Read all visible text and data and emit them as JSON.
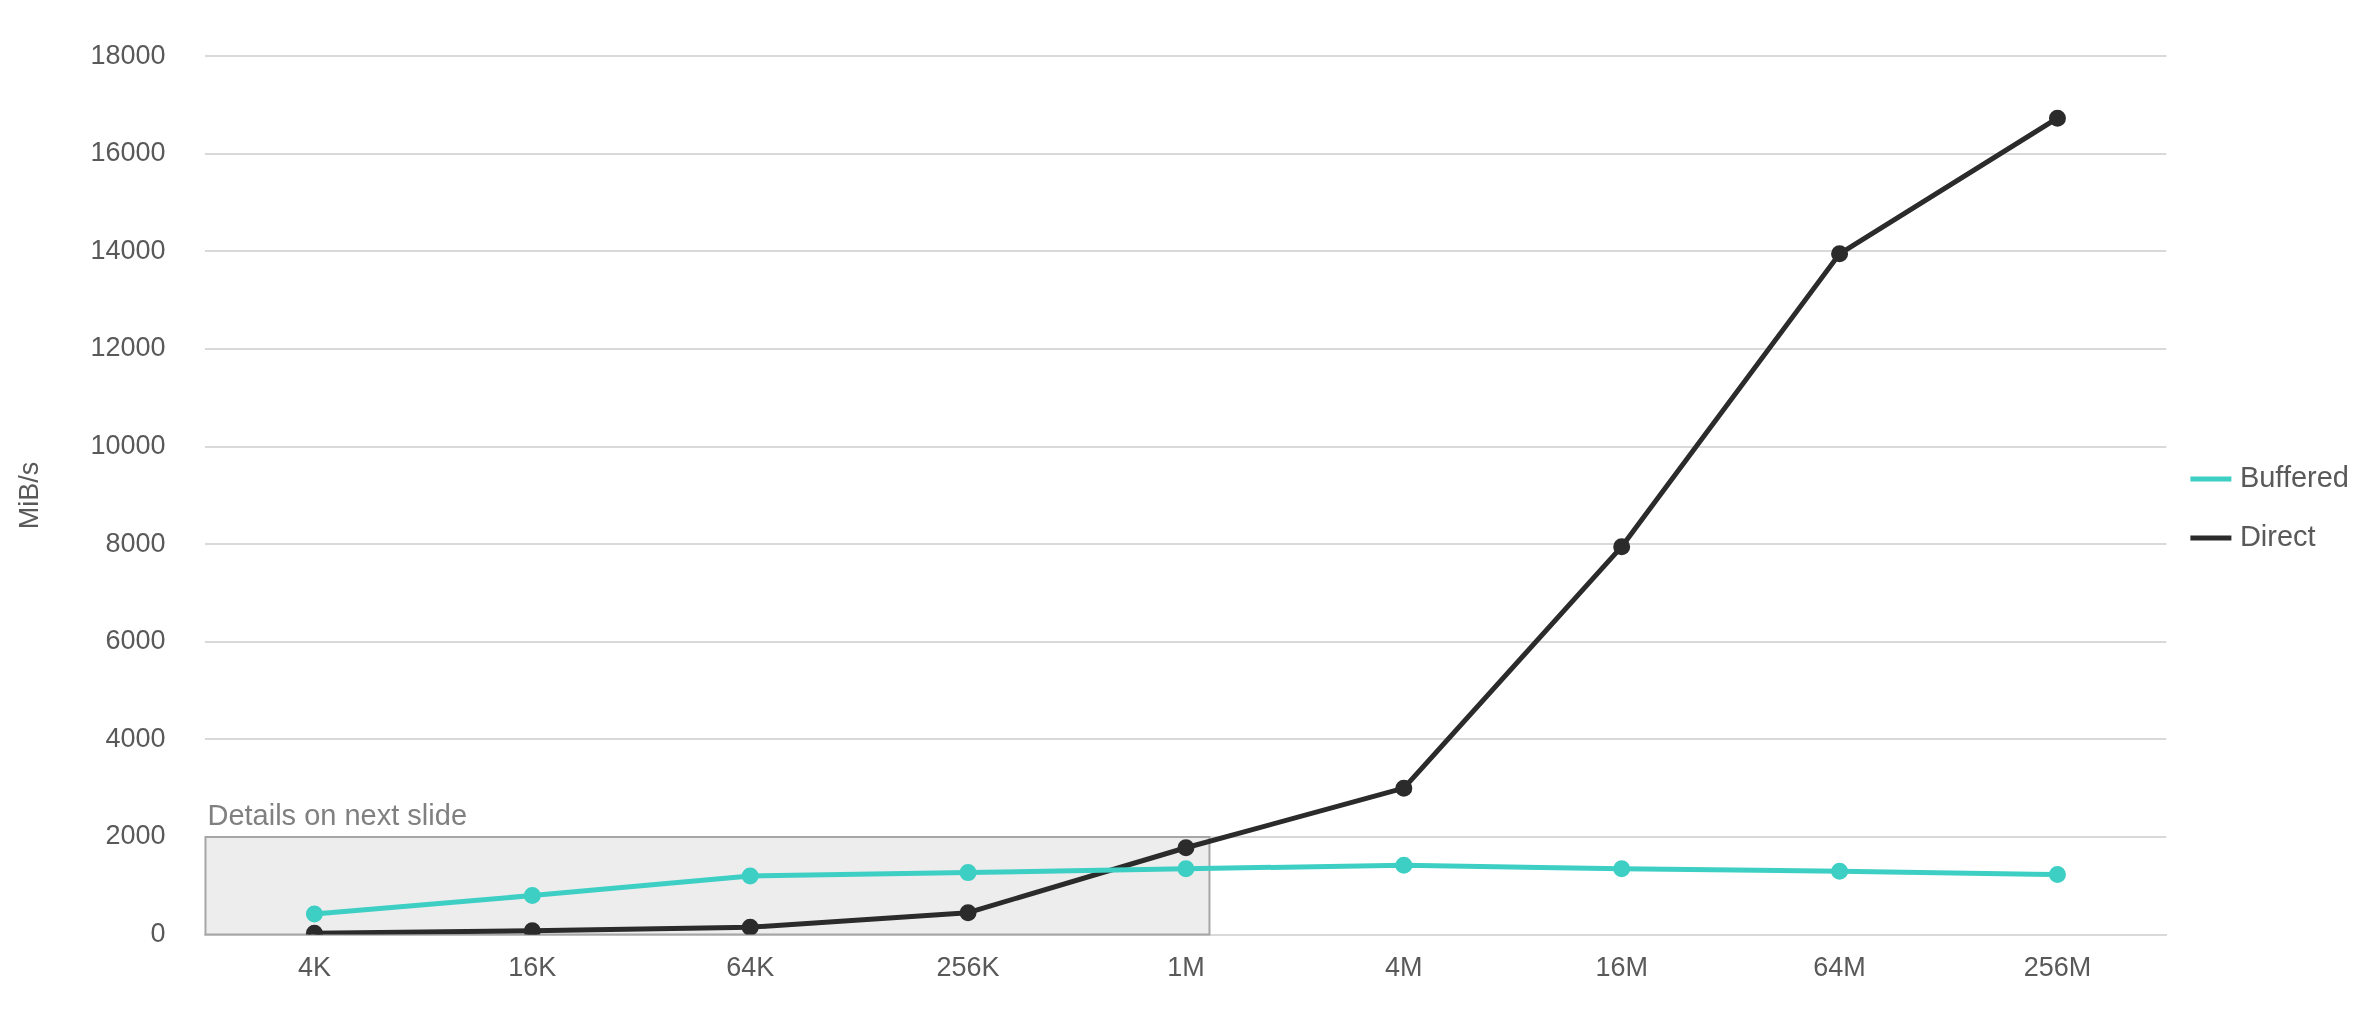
{
  "chart_data": {
    "type": "line",
    "ylabel": "MiB/s",
    "categories": [
      "4K",
      "16K",
      "64K",
      "256K",
      "1M",
      "4M",
      "16M",
      "64M",
      "256M"
    ],
    "series": [
      {
        "name": "Buffered",
        "color": "#3ecfc4",
        "values": [
          420,
          800,
          1200,
          1270,
          1350,
          1420,
          1350,
          1300,
          1230
        ]
      },
      {
        "name": "Direct",
        "color": "#2b2b2b",
        "values": [
          30,
          80,
          150,
          450,
          1780,
          3000,
          7950,
          13950,
          16730
        ]
      }
    ],
    "ylim": [
      0,
      18000
    ],
    "yticks": [
      0,
      2000,
      4000,
      6000,
      8000,
      10000,
      12000,
      14000,
      16000,
      18000
    ],
    "bands": [
      {
        "axis": "y",
        "from": 0,
        "to": 2000,
        "label": "Details on next slide",
        "color": "#e8e8e8"
      }
    ],
    "grid": "y",
    "legend": "right",
    "marker": "circle",
    "line_style": "solid"
  }
}
